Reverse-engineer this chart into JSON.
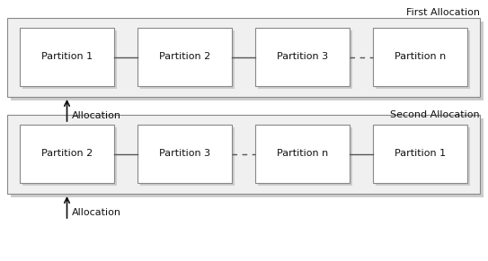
{
  "fig_width": 5.43,
  "fig_height": 2.91,
  "dpi": 100,
  "bg_color": "#ffffff",
  "shadow_color": "#cccccc",
  "outer_fill": "#f0f0f0",
  "outer_edge": "#888888",
  "partition_fill": "#ffffff",
  "partition_edge": "#888888",
  "title1": "First Allocation",
  "title2": "Second Allocation",
  "allocation_label": "Allocation",
  "row1_partitions": [
    "Partition 1",
    "Partition 2",
    "Partition 3",
    "Partition n"
  ],
  "row2_partitions": [
    "Partition 2",
    "Partition 3",
    "Partition n",
    "Partition 1"
  ],
  "row1_dashed_connector": 2,
  "row2_dashed_connector": 1,
  "title_fontsize": 8,
  "partition_fontsize": 8,
  "alloc_fontsize": 8
}
